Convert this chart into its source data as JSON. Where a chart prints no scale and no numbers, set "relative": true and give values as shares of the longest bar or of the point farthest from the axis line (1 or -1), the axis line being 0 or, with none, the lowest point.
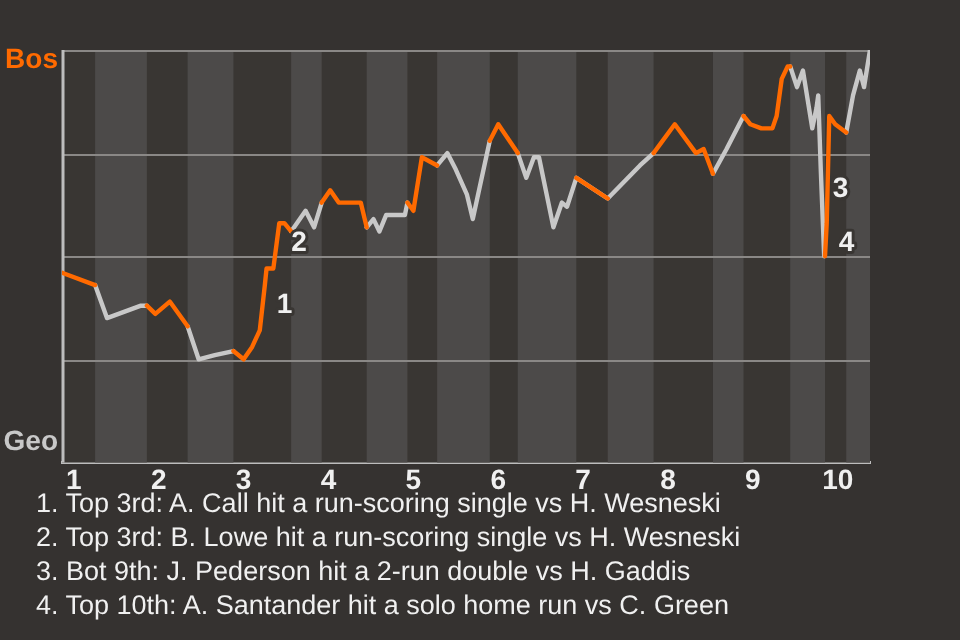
{
  "chart_data": {
    "type": "line",
    "relative": true,
    "grid": "y",
    "legend": false,
    "marker": "none",
    "line_style": "solid",
    "x": [
      0.86,
      1.25,
      1.39,
      1.79,
      1.86,
      1.96,
      2.13,
      2.34,
      2.47,
      2.66,
      2.88,
      3,
      3.1,
      3.19,
      3.25,
      3.27,
      3.35,
      3.42,
      3.48,
      3.56,
      3.73,
      3.83,
      3.92,
      4.02,
      4.12,
      4.38,
      4.45,
      4.53,
      4.6,
      4.68,
      4.9,
      4.93,
      5,
      5.1,
      5.28,
      5.4,
      5.5,
      5.63,
      5.7,
      5.9,
      6,
      6.23,
      6.33,
      6.42,
      6.48,
      6.65,
      6.75,
      6.81,
      6.92,
      7.29,
      7.67,
      7.83,
      8.08,
      8.33,
      8.42,
      8.53,
      8.69,
      8.89,
      8.97,
      9.1,
      9.23,
      9.28,
      9.34,
      9.41,
      9.44,
      9.52,
      9.59,
      9.7,
      9.75,
      9.77,
      9.8,
      9.84,
      9.85,
      9.87,
      9.9,
      9.97,
      10.1,
      10.18,
      10.26,
      10.31,
      10.38
    ],
    "xlim": [
      0.86,
      10.38
    ],
    "xticks": [
      1,
      2,
      3,
      4,
      5,
      6,
      7,
      8,
      9,
      10
    ],
    "series": [
      {
        "name": "Bos",
        "color": "#ff6a00",
        "values": [
          0.46,
          0.43,
          null,
          null,
          0.38,
          0.36,
          0.39,
          0.33,
          null,
          null,
          0.27,
          0.25,
          0.28,
          0.32,
          0.43,
          0.47,
          0.47,
          0.58,
          0.58,
          0.56,
          null,
          null,
          0.63,
          0.66,
          0.63,
          0.63,
          0.57,
          null,
          null,
          null,
          null,
          0.63,
          0.61,
          0.74,
          0.72,
          null,
          null,
          null,
          null,
          0.78,
          0.82,
          0.75,
          null,
          null,
          null,
          null,
          null,
          null,
          0.69,
          0.64,
          null,
          0.75,
          0.82,
          0.75,
          0.76,
          0.7,
          null,
          0.84,
          0.82,
          0.81,
          0.81,
          0.84,
          0.93,
          0.96,
          0.96,
          null,
          null,
          null,
          null,
          null,
          null,
          null,
          0.5,
          0.58,
          0.84,
          0.82,
          0.8,
          null,
          null,
          null,
          null
        ]
      },
      {
        "name": "Geo",
        "color": "#c8c8c8",
        "values": [
          null,
          0.43,
          0.35,
          0.38,
          0.38,
          null,
          null,
          0.33,
          0.25,
          0.26,
          0.27,
          null,
          null,
          null,
          null,
          null,
          null,
          null,
          null,
          0.56,
          0.61,
          0.57,
          0.63,
          null,
          null,
          null,
          0.57,
          0.59,
          0.56,
          0.6,
          0.6,
          0.63,
          null,
          null,
          0.72,
          0.75,
          0.71,
          0.65,
          0.59,
          0.78,
          null,
          0.75,
          0.69,
          0.74,
          0.74,
          0.57,
          0.63,
          0.62,
          0.69,
          0.64,
          0.72,
          0.75,
          null,
          null,
          null,
          0.7,
          0.76,
          0.84,
          null,
          null,
          null,
          null,
          null,
          null,
          0.96,
          0.91,
          0.95,
          0.81,
          0.86,
          0.89,
          0.71,
          0.5,
          0.5,
          null,
          null,
          null,
          0.8,
          0.89,
          0.95,
          0.91,
          1
        ]
      }
    ],
    "bands": [
      {
        "axis": "x",
        "from": 1.25,
        "to": 1.86,
        "color": "#4c4a49"
      },
      {
        "axis": "x",
        "from": 2.34,
        "to": 2.88,
        "color": "#4c4a49"
      },
      {
        "axis": "x",
        "from": 3.56,
        "to": 3.92,
        "color": "#4c4a49"
      },
      {
        "axis": "x",
        "from": 4.45,
        "to": 4.93,
        "color": "#4c4a49"
      },
      {
        "axis": "x",
        "from": 5.28,
        "to": 5.9,
        "color": "#4c4a49"
      },
      {
        "axis": "x",
        "from": 6.23,
        "to": 6.92,
        "color": "#4c4a49"
      },
      {
        "axis": "x",
        "from": 7.29,
        "to": 7.83,
        "color": "#4c4a49"
      },
      {
        "axis": "x",
        "from": 8.53,
        "to": 8.89,
        "color": "#4c4a49"
      },
      {
        "axis": "x",
        "from": 9.44,
        "to": 9.85,
        "color": "#4c4a49"
      },
      {
        "axis": "x",
        "from": 10.1,
        "to": 10.38,
        "color": "#4c4a49"
      }
    ],
    "annotations": [
      {
        "text": "1",
        "x": 3.25,
        "y": 0.43
      },
      {
        "text": "2",
        "x": 3.42,
        "y": 0.58
      },
      {
        "text": "3",
        "x": 9.8,
        "y": 0.71
      },
      {
        "text": "4",
        "x": 9.87,
        "y": 0.58
      },
      "1. Top 3rd: A. Call hit a run-scoring single vs H. Wesneski",
      "2. Top 3rd: B. Lowe hit a run-scoring single vs H. Wesneski",
      "3. Bot 9th: J. Pederson hit a 2-run double vs H. Gaddis",
      "4. Top 10th: A. Santander hit a solo home run vs C. Green"
    ]
  }
}
